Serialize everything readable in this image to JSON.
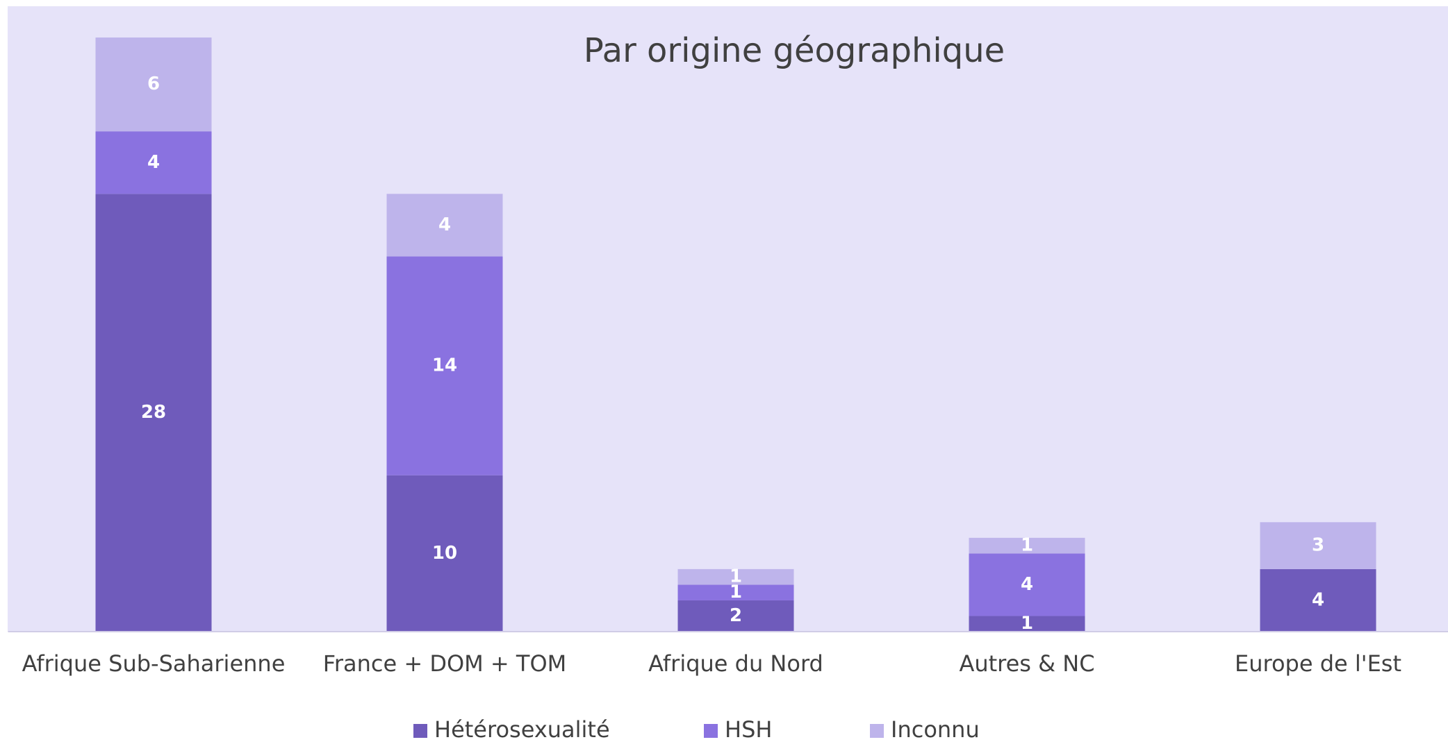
{
  "chart_data": {
    "type": "stacked_bar",
    "title": "Par origine géographique",
    "categories": [
      "Afrique Sub-Saharienne",
      "France + DOM + TOM",
      "Afrique du Nord",
      "Autres & NC",
      "Europe de l'Est"
    ],
    "series": [
      {
        "name": "Hétérosexualité",
        "color": "#6f5bbb",
        "values": [
          28,
          10,
          2,
          1,
          4
        ]
      },
      {
        "name": "HSH",
        "color": "#8a72e0",
        "values": [
          4,
          14,
          1,
          4,
          0
        ]
      },
      {
        "name": "Inconnu",
        "color": "#beb4eb",
        "values": [
          6,
          4,
          1,
          1,
          3
        ]
      }
    ],
    "ylim": [
      0,
      40
    ],
    "legend": "bottom"
  }
}
